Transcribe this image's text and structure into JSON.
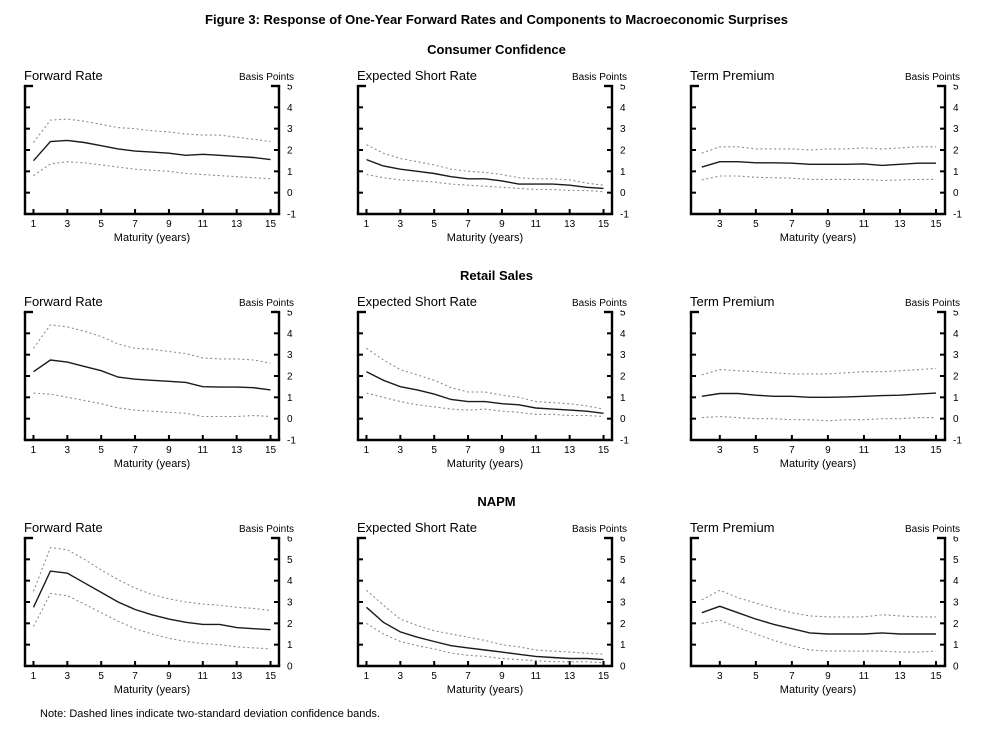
{
  "figure": {
    "title": "Figure 3: Response of One-Year Forward Rates and Components to Macroeconomic Surprises",
    "note": "Note: Dashed lines indicate two-standard deviation confidence bands."
  },
  "colors": {
    "axis": "#000000",
    "solid_line": "#1a1a1a",
    "dashed_band": "#8c8c8c",
    "background": "#ffffff"
  },
  "chart_data": [
    {
      "group": "Consumer Confidence",
      "type": "line",
      "title": "Forward Rate",
      "unit_label": "Basis Points",
      "xlabel": "Maturity (years)",
      "x": [
        1,
        2,
        3,
        4,
        5,
        6,
        7,
        8,
        9,
        10,
        11,
        12,
        13,
        14,
        15
      ],
      "xticks": [
        1,
        3,
        5,
        7,
        9,
        11,
        13,
        15
      ],
      "xlim": [
        0.5,
        15.5
      ],
      "ylim": [
        -1,
        5
      ],
      "series": [
        {
          "name": "response",
          "style": "solid",
          "values": [
            1.5,
            2.4,
            2.45,
            2.35,
            2.2,
            2.05,
            1.95,
            1.9,
            1.85,
            1.75,
            1.8,
            1.75,
            1.7,
            1.65,
            1.55
          ]
        },
        {
          "name": "upper 2-sd band",
          "style": "dashed",
          "values": [
            2.35,
            3.4,
            3.45,
            3.35,
            3.2,
            3.05,
            3.0,
            2.9,
            2.85,
            2.75,
            2.7,
            2.7,
            2.6,
            2.5,
            2.4
          ]
        },
        {
          "name": "lower 2-sd band",
          "style": "dashed",
          "values": [
            0.8,
            1.35,
            1.45,
            1.4,
            1.3,
            1.2,
            1.1,
            1.05,
            1.0,
            0.9,
            0.85,
            0.8,
            0.75,
            0.7,
            0.65
          ]
        }
      ]
    },
    {
      "group": "Consumer Confidence",
      "type": "line",
      "title": "Expected Short Rate",
      "unit_label": "Basis Points",
      "xlabel": "Maturity (years)",
      "x": [
        1,
        2,
        3,
        4,
        5,
        6,
        7,
        8,
        9,
        10,
        11,
        12,
        13,
        14,
        15
      ],
      "xticks": [
        1,
        3,
        5,
        7,
        9,
        11,
        13,
        15
      ],
      "xlim": [
        0.5,
        15.5
      ],
      "ylim": [
        -1,
        5
      ],
      "series": [
        {
          "name": "response",
          "style": "solid",
          "values": [
            1.55,
            1.25,
            1.1,
            1.0,
            0.9,
            0.75,
            0.65,
            0.65,
            0.55,
            0.4,
            0.4,
            0.4,
            0.35,
            0.25,
            0.2
          ]
        },
        {
          "name": "upper 2-sd band",
          "style": "dashed",
          "values": [
            2.25,
            1.85,
            1.6,
            1.45,
            1.3,
            1.1,
            1.0,
            0.95,
            0.85,
            0.7,
            0.65,
            0.65,
            0.6,
            0.45,
            0.35
          ]
        },
        {
          "name": "lower 2-sd band",
          "style": "dashed",
          "values": [
            0.85,
            0.7,
            0.6,
            0.55,
            0.5,
            0.4,
            0.35,
            0.3,
            0.25,
            0.2,
            0.15,
            0.15,
            0.1,
            0.1,
            0.05
          ]
        }
      ]
    },
    {
      "group": "Consumer Confidence",
      "type": "line",
      "title": "Term Premium",
      "unit_label": "Basis Points",
      "xlabel": "Maturity (years)",
      "x": [
        2,
        3,
        4,
        5,
        6,
        7,
        8,
        9,
        10,
        11,
        12,
        13,
        14,
        15
      ],
      "xticks": [
        3,
        5,
        7,
        9,
        11,
        13,
        15
      ],
      "xlim": [
        1.4,
        15.5
      ],
      "ylim": [
        -1,
        5
      ],
      "series": [
        {
          "name": "response",
          "style": "solid",
          "values": [
            1.2,
            1.45,
            1.45,
            1.4,
            1.4,
            1.38,
            1.33,
            1.33,
            1.33,
            1.35,
            1.28,
            1.33,
            1.38,
            1.38
          ]
        },
        {
          "name": "upper 2-sd band",
          "style": "dashed",
          "values": [
            1.85,
            2.15,
            2.15,
            2.05,
            2.05,
            2.05,
            2.0,
            2.05,
            2.05,
            2.1,
            2.05,
            2.1,
            2.15,
            2.15
          ]
        },
        {
          "name": "lower 2-sd band",
          "style": "dashed",
          "values": [
            0.6,
            0.78,
            0.78,
            0.72,
            0.7,
            0.68,
            0.62,
            0.62,
            0.62,
            0.62,
            0.57,
            0.6,
            0.62,
            0.62
          ]
        }
      ]
    },
    {
      "group": "Retail Sales",
      "type": "line",
      "title": "Forward Rate",
      "unit_label": "Basis Points",
      "xlabel": "Maturity (years)",
      "x": [
        1,
        2,
        3,
        4,
        5,
        6,
        7,
        8,
        9,
        10,
        11,
        12,
        13,
        14,
        15
      ],
      "xticks": [
        1,
        3,
        5,
        7,
        9,
        11,
        13,
        15
      ],
      "xlim": [
        0.5,
        15.5
      ],
      "ylim": [
        -1,
        5
      ],
      "series": [
        {
          "name": "response",
          "style": "solid",
          "values": [
            2.2,
            2.75,
            2.65,
            2.45,
            2.25,
            1.95,
            1.85,
            1.8,
            1.75,
            1.7,
            1.5,
            1.48,
            1.48,
            1.45,
            1.35
          ]
        },
        {
          "name": "upper 2-sd band",
          "style": "dashed",
          "values": [
            3.3,
            4.4,
            4.3,
            4.1,
            3.85,
            3.5,
            3.3,
            3.25,
            3.15,
            3.05,
            2.85,
            2.8,
            2.8,
            2.75,
            2.6
          ]
        },
        {
          "name": "lower 2-sd band",
          "style": "dashed",
          "values": [
            1.2,
            1.15,
            1.0,
            0.85,
            0.7,
            0.5,
            0.4,
            0.35,
            0.3,
            0.25,
            0.1,
            0.1,
            0.1,
            0.15,
            0.1
          ]
        }
      ]
    },
    {
      "group": "Retail Sales",
      "type": "line",
      "title": "Expected Short Rate",
      "unit_label": "Basis Points",
      "xlabel": "Maturity (years)",
      "x": [
        1,
        2,
        3,
        4,
        5,
        6,
        7,
        8,
        9,
        10,
        11,
        12,
        13,
        14,
        15
      ],
      "xticks": [
        1,
        3,
        5,
        7,
        9,
        11,
        13,
        15
      ],
      "xlim": [
        0.5,
        15.5
      ],
      "ylim": [
        -1,
        5
      ],
      "series": [
        {
          "name": "response",
          "style": "solid",
          "values": [
            2.2,
            1.8,
            1.5,
            1.35,
            1.15,
            0.9,
            0.8,
            0.8,
            0.7,
            0.65,
            0.5,
            0.45,
            0.4,
            0.35,
            0.25
          ]
        },
        {
          "name": "upper 2-sd band",
          "style": "dashed",
          "values": [
            3.3,
            2.75,
            2.3,
            2.05,
            1.8,
            1.45,
            1.25,
            1.25,
            1.1,
            1.0,
            0.8,
            0.75,
            0.7,
            0.6,
            0.45
          ]
        },
        {
          "name": "lower 2-sd band",
          "style": "dashed",
          "values": [
            1.2,
            1.0,
            0.8,
            0.65,
            0.55,
            0.45,
            0.4,
            0.45,
            0.35,
            0.3,
            0.2,
            0.2,
            0.15,
            0.15,
            0.1
          ]
        }
      ]
    },
    {
      "group": "Retail Sales",
      "type": "line",
      "title": "Term Premium",
      "unit_label": "Basis Points",
      "xlabel": "Maturity (years)",
      "x": [
        2,
        3,
        4,
        5,
        6,
        7,
        8,
        9,
        10,
        11,
        12,
        13,
        14,
        15
      ],
      "xticks": [
        3,
        5,
        7,
        9,
        11,
        13,
        15
      ],
      "xlim": [
        1.4,
        15.5
      ],
      "ylim": [
        -1,
        5
      ],
      "series": [
        {
          "name": "response",
          "style": "solid",
          "values": [
            1.05,
            1.18,
            1.18,
            1.1,
            1.05,
            1.05,
            1.0,
            1.0,
            1.02,
            1.05,
            1.08,
            1.1,
            1.15,
            1.2
          ]
        },
        {
          "name": "upper 2-sd band",
          "style": "dashed",
          "values": [
            2.05,
            2.3,
            2.25,
            2.2,
            2.15,
            2.1,
            2.1,
            2.1,
            2.15,
            2.2,
            2.2,
            2.25,
            2.3,
            2.35
          ]
        },
        {
          "name": "lower 2-sd band",
          "style": "dashed",
          "values": [
            0.05,
            0.1,
            0.05,
            0.0,
            0.0,
            -0.05,
            -0.05,
            -0.1,
            -0.05,
            -0.05,
            0.0,
            0.0,
            0.05,
            0.05
          ]
        }
      ]
    },
    {
      "group": "NAPM",
      "type": "line",
      "title": "Forward Rate",
      "unit_label": "Basis Points",
      "xlabel": "Maturity (years)",
      "x": [
        1,
        2,
        3,
        4,
        5,
        6,
        7,
        8,
        9,
        10,
        11,
        12,
        13,
        14,
        15
      ],
      "xticks": [
        1,
        3,
        5,
        7,
        9,
        11,
        13,
        15
      ],
      "xlim": [
        0.5,
        15.5
      ],
      "ylim": [
        0,
        6
      ],
      "series": [
        {
          "name": "response",
          "style": "solid",
          "values": [
            2.75,
            4.45,
            4.35,
            3.9,
            3.45,
            3.0,
            2.65,
            2.4,
            2.2,
            2.05,
            1.95,
            1.95,
            1.8,
            1.75,
            1.7
          ]
        },
        {
          "name": "upper 2-sd band",
          "style": "dashed",
          "values": [
            3.5,
            5.55,
            5.45,
            5.0,
            4.5,
            4.05,
            3.65,
            3.35,
            3.15,
            3.0,
            2.9,
            2.85,
            2.75,
            2.7,
            2.6
          ]
        },
        {
          "name": "lower 2-sd band",
          "style": "dashed",
          "values": [
            1.85,
            3.4,
            3.3,
            2.9,
            2.5,
            2.1,
            1.75,
            1.5,
            1.3,
            1.15,
            1.05,
            1.0,
            0.9,
            0.85,
            0.8
          ]
        }
      ]
    },
    {
      "group": "NAPM",
      "type": "line",
      "title": "Expected Short Rate",
      "unit_label": "Basis Points",
      "xlabel": "Maturity (years)",
      "x": [
        1,
        2,
        3,
        4,
        5,
        6,
        7,
        8,
        9,
        10,
        11,
        12,
        13,
        14,
        15
      ],
      "xticks": [
        1,
        3,
        5,
        7,
        9,
        11,
        13,
        15
      ],
      "xlim": [
        0.5,
        15.5
      ],
      "ylim": [
        0,
        6
      ],
      "series": [
        {
          "name": "response",
          "style": "solid",
          "values": [
            2.75,
            2.05,
            1.6,
            1.35,
            1.15,
            0.95,
            0.85,
            0.75,
            0.65,
            0.55,
            0.45,
            0.4,
            0.35,
            0.35,
            0.3
          ]
        },
        {
          "name": "upper 2-sd band",
          "style": "dashed",
          "values": [
            3.55,
            2.85,
            2.2,
            1.9,
            1.65,
            1.5,
            1.35,
            1.2,
            1.0,
            0.9,
            0.75,
            0.7,
            0.65,
            0.6,
            0.55
          ]
        },
        {
          "name": "lower 2-sd band",
          "style": "dashed",
          "values": [
            2.0,
            1.5,
            1.15,
            0.95,
            0.8,
            0.6,
            0.5,
            0.45,
            0.35,
            0.3,
            0.25,
            0.2,
            0.2,
            0.2,
            0.15
          ]
        }
      ]
    },
    {
      "group": "NAPM",
      "type": "line",
      "title": "Term Premium",
      "unit_label": "Basis Points",
      "xlabel": "Maturity (years)",
      "x": [
        2,
        3,
        4,
        5,
        6,
        7,
        8,
        9,
        10,
        11,
        12,
        13,
        14,
        15
      ],
      "xticks": [
        3,
        5,
        7,
        9,
        11,
        13,
        15
      ],
      "xlim": [
        1.4,
        15.5
      ],
      "ylim": [
        0,
        6
      ],
      "series": [
        {
          "name": "response",
          "style": "solid",
          "values": [
            2.5,
            2.8,
            2.5,
            2.2,
            1.95,
            1.75,
            1.55,
            1.5,
            1.5,
            1.5,
            1.55,
            1.5,
            1.5,
            1.5
          ]
        },
        {
          "name": "upper 2-sd band",
          "style": "dashed",
          "values": [
            3.1,
            3.55,
            3.2,
            2.95,
            2.7,
            2.5,
            2.35,
            2.3,
            2.3,
            2.3,
            2.4,
            2.35,
            2.3,
            2.3
          ]
        },
        {
          "name": "lower 2-sd band",
          "style": "dashed",
          "values": [
            2.0,
            2.15,
            1.8,
            1.5,
            1.2,
            0.95,
            0.75,
            0.7,
            0.7,
            0.7,
            0.7,
            0.65,
            0.65,
            0.7
          ]
        }
      ]
    }
  ]
}
